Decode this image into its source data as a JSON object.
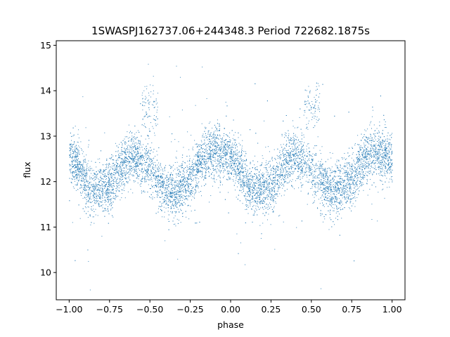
{
  "chart_data": {
    "type": "scatter",
    "title": "1SWASPJ162737.06+244348.3 Period 722682.1875s",
    "xlabel": "phase",
    "ylabel": "flux",
    "xlim": [
      -1.08,
      1.08
    ],
    "ylim": [
      9.4,
      15.1
    ],
    "x_ticks": [
      -1.0,
      -0.75,
      -0.5,
      -0.25,
      0.0,
      0.25,
      0.5,
      0.75,
      1.0
    ],
    "x_tick_labels": [
      "−1.00",
      "−0.75",
      "−0.50",
      "−0.25",
      "0.00",
      "0.25",
      "0.50",
      "0.75",
      "1.00"
    ],
    "y_ticks": [
      10,
      11,
      12,
      13,
      14,
      15
    ],
    "y_tick_labels": [
      "10",
      "11",
      "12",
      "13",
      "14",
      "15"
    ],
    "grid": false,
    "point_color": "#1f77b4",
    "series": [
      {
        "trend_phase": [
          -1.0,
          -0.95,
          -0.9,
          -0.85,
          -0.8,
          -0.75,
          -0.7,
          -0.65,
          -0.6,
          -0.55,
          -0.5,
          -0.45,
          -0.4,
          -0.35,
          -0.3,
          -0.25,
          -0.2,
          -0.15,
          -0.1,
          -0.05,
          0.0,
          0.05,
          0.1,
          0.15,
          0.2,
          0.25,
          0.3,
          0.35,
          0.4,
          0.45,
          0.5,
          0.55,
          0.6,
          0.65,
          0.7,
          0.75,
          0.8,
          0.85,
          0.9,
          0.95,
          1.0
        ],
        "trend_flux": [
          12.5,
          12.4,
          12.0,
          11.8,
          11.85,
          11.95,
          12.2,
          12.5,
          12.6,
          12.4,
          12.25,
          12.0,
          11.8,
          11.8,
          11.9,
          12.0,
          12.4,
          12.6,
          12.7,
          12.6,
          12.5,
          12.3,
          11.9,
          11.8,
          11.85,
          11.95,
          12.2,
          12.5,
          12.6,
          12.4,
          12.25,
          12.0,
          11.8,
          11.8,
          11.9,
          12.0,
          12.4,
          12.6,
          12.7,
          12.6,
          12.5
        ],
        "bright_group_phase": [
          -0.55,
          -0.45
        ],
        "bright_group_flux": 13.6,
        "n_points": 9000
      }
    ]
  }
}
